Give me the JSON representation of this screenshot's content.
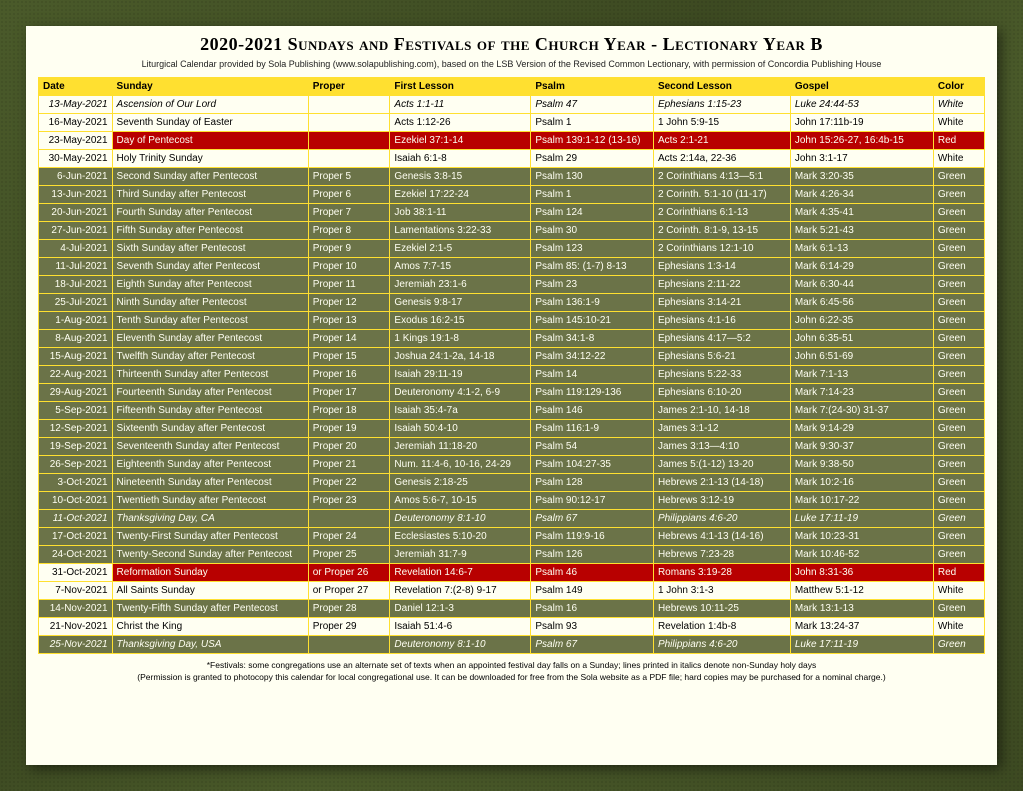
{
  "title": "2020-2021 Sundays and Festivals of the Church Year - Lectionary Year B",
  "subtitle": "Liturgical Calendar provided by Sola Publishing (www.solapublishing.com), based on the LSB Version of the Revised Common Lectionary, with permission of Concordia Publishing House",
  "columns": [
    "Date",
    "Sunday",
    "Proper",
    "First Lesson",
    "Psalm",
    "Second Lesson",
    "Gospel",
    "Color"
  ],
  "rows": [
    {
      "style": "white",
      "italic": true,
      "cells": [
        "13-May-2021",
        "Ascension of Our Lord",
        "",
        "Acts 1:1-11",
        "Psalm 47",
        "Ephesians 1:15-23",
        "Luke 24:44-53",
        "White"
      ]
    },
    {
      "style": "white",
      "italic": false,
      "cells": [
        "16-May-2021",
        "Seventh Sunday of Easter",
        "",
        "Acts 1:12-26",
        "Psalm 1",
        "1 John 5:9-15",
        "John 17:11b-19",
        "White"
      ]
    },
    {
      "style": "red",
      "italic": false,
      "cells": [
        "23-May-2021",
        "Day of Pentecost",
        "",
        "Ezekiel 37:1-14",
        "Psalm 139:1-12 (13-16)",
        "Acts 2:1-21",
        "John 15:26-27, 16:4b-15",
        "Red"
      ]
    },
    {
      "style": "white",
      "italic": false,
      "cells": [
        "30-May-2021",
        "Holy Trinity Sunday",
        "",
        "Isaiah 6:1-8",
        "Psalm 29",
        "Acts 2:14a, 22-36",
        "John 3:1-17",
        "White"
      ]
    },
    {
      "style": "green",
      "italic": false,
      "cells": [
        "6-Jun-2021",
        "Second Sunday after Pentecost",
        "Proper 5",
        "Genesis 3:8-15",
        "Psalm 130",
        "2 Corinthians 4:13—5:1",
        "Mark 3:20-35",
        "Green"
      ]
    },
    {
      "style": "green",
      "italic": false,
      "cells": [
        "13-Jun-2021",
        "Third Sunday after Pentecost",
        "Proper 6",
        "Ezekiel 17:22-24",
        "Psalm 1",
        "2 Corinth. 5:1-10 (11-17)",
        "Mark 4:26-34",
        "Green"
      ]
    },
    {
      "style": "green",
      "italic": false,
      "cells": [
        "20-Jun-2021",
        "Fourth Sunday after Pentecost",
        "Proper 7",
        "Job 38:1-11",
        "Psalm 124",
        "2 Corinthians 6:1-13",
        "Mark 4:35-41",
        "Green"
      ]
    },
    {
      "style": "green",
      "italic": false,
      "cells": [
        "27-Jun-2021",
        "Fifth Sunday after Pentecost",
        "Proper 8",
        "Lamentations 3:22-33",
        "Psalm 30",
        "2 Corinth. 8:1-9, 13-15",
        "Mark 5:21-43",
        "Green"
      ]
    },
    {
      "style": "green",
      "italic": false,
      "cells": [
        "4-Jul-2021",
        "Sixth Sunday after Pentecost",
        "Proper 9",
        "Ezekiel 2:1-5",
        "Psalm 123",
        "2 Corinthians 12:1-10",
        "Mark 6:1-13",
        "Green"
      ]
    },
    {
      "style": "green",
      "italic": false,
      "cells": [
        "11-Jul-2021",
        "Seventh Sunday after Pentecost",
        "Proper 10",
        "Amos 7:7-15",
        "Psalm 85: (1-7) 8-13",
        "Ephesians 1:3-14",
        "Mark 6:14-29",
        "Green"
      ]
    },
    {
      "style": "green",
      "italic": false,
      "cells": [
        "18-Jul-2021",
        "Eighth Sunday after Pentecost",
        "Proper 11",
        "Jeremiah 23:1-6",
        "Psalm 23",
        "Ephesians 2:11-22",
        "Mark 6:30-44",
        "Green"
      ]
    },
    {
      "style": "green",
      "italic": false,
      "cells": [
        "25-Jul-2021",
        "Ninth Sunday after Pentecost",
        "Proper 12",
        "Genesis 9:8-17",
        "Psalm 136:1-9",
        "Ephesians 3:14-21",
        "Mark 6:45-56",
        "Green"
      ]
    },
    {
      "style": "green",
      "italic": false,
      "cells": [
        "1-Aug-2021",
        "Tenth Sunday after Pentecost",
        "Proper 13",
        "Exodus 16:2-15",
        "Psalm 145:10-21",
        "Ephesians 4:1-16",
        "John 6:22-35",
        "Green"
      ]
    },
    {
      "style": "green",
      "italic": false,
      "cells": [
        "8-Aug-2021",
        "Eleventh Sunday after Pentecost",
        "Proper 14",
        "1 Kings 19:1-8",
        "Psalm 34:1-8",
        "Ephesians 4:17—5:2",
        "John 6:35-51",
        "Green"
      ]
    },
    {
      "style": "green",
      "italic": false,
      "cells": [
        "15-Aug-2021",
        "Twelfth Sunday after Pentecost",
        "Proper 15",
        "Joshua 24:1-2a, 14-18",
        "Psalm 34:12-22",
        "Ephesians 5:6-21",
        "John 6:51-69",
        "Green"
      ]
    },
    {
      "style": "green",
      "italic": false,
      "cells": [
        "22-Aug-2021",
        "Thirteenth Sunday after Pentecost",
        "Proper 16",
        "Isaiah 29:11-19",
        "Psalm 14",
        "Ephesians 5:22-33",
        "Mark 7:1-13",
        "Green"
      ]
    },
    {
      "style": "green",
      "italic": false,
      "cells": [
        "29-Aug-2021",
        "Fourteenth Sunday after Pentecost",
        "Proper 17",
        "Deuteronomy 4:1-2, 6-9",
        "Psalm 119:129-136",
        "Ephesians 6:10-20",
        "Mark 7:14-23",
        "Green"
      ]
    },
    {
      "style": "green",
      "italic": false,
      "cells": [
        "5-Sep-2021",
        "Fifteenth Sunday after Pentecost",
        "Proper 18",
        "Isaiah 35:4-7a",
        "Psalm 146",
        "James 2:1-10, 14-18",
        "Mark 7:(24-30) 31-37",
        "Green"
      ]
    },
    {
      "style": "green",
      "italic": false,
      "cells": [
        "12-Sep-2021",
        "Sixteenth Sunday after Pentecost",
        "Proper 19",
        "Isaiah 50:4-10",
        "Psalm 116:1-9",
        "James 3:1-12",
        "Mark 9:14-29",
        "Green"
      ]
    },
    {
      "style": "green",
      "italic": false,
      "cells": [
        "19-Sep-2021",
        "Seventeenth Sunday after Pentecost",
        "Proper 20",
        "Jeremiah 11:18-20",
        "Psalm 54",
        "James 3:13—4:10",
        "Mark 9:30-37",
        "Green"
      ]
    },
    {
      "style": "green",
      "italic": false,
      "cells": [
        "26-Sep-2021",
        "Eighteenth Sunday after Pentecost",
        "Proper 21",
        "Num. 11:4-6, 10-16, 24-29",
        "Psalm 104:27-35",
        "James 5:(1-12) 13-20",
        "Mark 9:38-50",
        "Green"
      ]
    },
    {
      "style": "green",
      "italic": false,
      "cells": [
        "3-Oct-2021",
        "Nineteenth Sunday after Pentecost",
        "Proper 22",
        "Genesis 2:18-25",
        "Psalm 128",
        "Hebrews 2:1-13 (14-18)",
        "Mark 10:2-16",
        "Green"
      ]
    },
    {
      "style": "green",
      "italic": false,
      "cells": [
        "10-Oct-2021",
        "Twentieth Sunday after Pentecost",
        "Proper 23",
        "Amos 5:6-7, 10-15",
        "Psalm 90:12-17",
        "Hebrews 3:12-19",
        "Mark 10:17-22",
        "Green"
      ]
    },
    {
      "style": "green",
      "italic": true,
      "cells": [
        "11-Oct-2021",
        "Thanksgiving Day, CA",
        "",
        "Deuteronomy 8:1-10",
        "Psalm 67",
        "Philippians 4:6-20",
        "Luke 17:11-19",
        "Green"
      ]
    },
    {
      "style": "green",
      "italic": false,
      "cells": [
        "17-Oct-2021",
        "Twenty-First Sunday after Pentecost",
        "Proper 24",
        "Ecclesiastes 5:10-20",
        "Psalm 119:9-16",
        "Hebrews 4:1-13 (14-16)",
        "Mark 10:23-31",
        "Green"
      ]
    },
    {
      "style": "green",
      "italic": false,
      "cells": [
        "24-Oct-2021",
        "Twenty-Second Sunday after Pentecost",
        "Proper 25",
        "Jeremiah 31:7-9",
        "Psalm 126",
        "Hebrews 7:23-28",
        "Mark 10:46-52",
        "Green"
      ]
    },
    {
      "style": "red",
      "italic": false,
      "cells": [
        "31-Oct-2021",
        "Reformation Sunday",
        "or Proper 26",
        "Revelation 14:6-7",
        "Psalm 46",
        "Romans 3:19-28",
        "John 8:31-36",
        "Red"
      ]
    },
    {
      "style": "white",
      "italic": false,
      "cells": [
        "7-Nov-2021",
        "All Saints Sunday",
        "or Proper 27",
        "Revelation 7:(2-8) 9-17",
        "Psalm 149",
        "1 John 3:1-3",
        "Matthew 5:1-12",
        "White"
      ]
    },
    {
      "style": "green",
      "italic": false,
      "cells": [
        "14-Nov-2021",
        "Twenty-Fifth Sunday after Pentecost",
        "Proper 28",
        "Daniel 12:1-3",
        "Psalm 16",
        "Hebrews 10:11-25",
        "Mark 13:1-13",
        "Green"
      ]
    },
    {
      "style": "white",
      "italic": false,
      "cells": [
        "21-Nov-2021",
        "Christ the King",
        "Proper 29",
        "Isaiah 51:4-6",
        "Psalm 93",
        "Revelation 1:4b-8",
        "Mark 13:24-37",
        "White"
      ]
    },
    {
      "style": "green",
      "italic": true,
      "cells": [
        "25-Nov-2021",
        "Thanksgiving Day, USA",
        "",
        "Deuteronomy 8:1-10",
        "Psalm 67",
        "Philippians 4:6-20",
        "Luke 17:11-19",
        "Green"
      ]
    }
  ],
  "footnote1": "*Festivals: some congregations use an alternate set of texts when an appointed festival day falls on a Sunday; lines printed in italics denote non-Sunday holy days",
  "footnote2": "(Permission is granted to photocopy this calendar for local congregational use. It can be downloaded for free from the Sola website as a PDF file; hard copies may be purchased for a nominal charge.)",
  "colors": {
    "header_bg": "#ffe030",
    "border": "#ffe030",
    "white_bg": "#fffff2",
    "green_bg": "#6b7348",
    "red_bg": "#b80000",
    "page_bg": "#fffff2",
    "body_bg": "#4a5a2a"
  }
}
